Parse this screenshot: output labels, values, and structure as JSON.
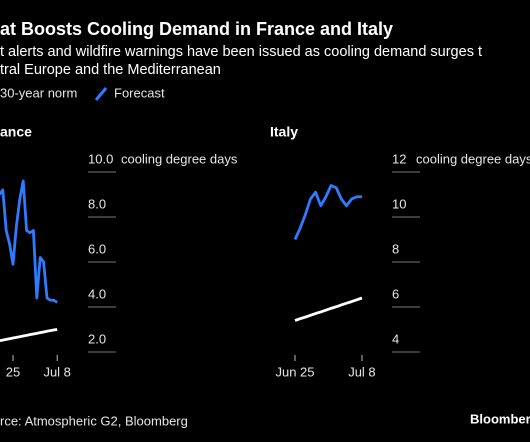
{
  "title": "at Boosts Cooling Demand in France and Italy",
  "subtitle": [
    "t alerts and wildfire warnings have been issued as cooling demand surges t",
    "tral Europe and the Mediterranean"
  ],
  "source": "rce: Atmospheric G2, Bloomberg",
  "brand": "Bloomberg",
  "chart_data": [
    {
      "type": "line",
      "title": "ance",
      "y_label": "cooling degree days",
      "categories": [
        null,
        null,
        null,
        null,
        "25",
        null,
        null,
        null,
        null,
        null,
        null,
        null,
        null,
        null,
        null,
        null,
        null,
        "Jul 8"
      ],
      "series": [
        {
          "name": "30-year norm",
          "color": "#ffffff",
          "values": [
            2.5,
            2.53,
            2.56,
            2.59,
            2.62,
            2.65,
            2.68,
            2.71,
            2.74,
            2.77,
            2.8,
            2.83,
            2.86,
            2.89,
            2.92,
            2.95,
            2.98,
            3.0
          ]
        },
        {
          "name": "Forecast",
          "color": "#2f7bff",
          "values": [
            9.0,
            9.2,
            7.4,
            6.8,
            5.9,
            7.6,
            8.8,
            9.6,
            7.4,
            7.3,
            7.4,
            4.4,
            6.2,
            6.0,
            4.4,
            4.3,
            4.3,
            4.2
          ]
        }
      ],
      "ylim": [
        2,
        10
      ],
      "yticks": [
        {
          "value": 10,
          "label": "10.0"
        },
        {
          "value": 8,
          "label": "8.0"
        },
        {
          "value": 6,
          "label": "6.0"
        },
        {
          "value": 4,
          "label": "4.0"
        },
        {
          "value": 2,
          "label": "2.0"
        }
      ]
    },
    {
      "type": "line",
      "title": "Italy",
      "y_label": "cooling degree days",
      "categories": [
        "Jun 25",
        null,
        null,
        null,
        null,
        null,
        null,
        null,
        null,
        null,
        null,
        null,
        null,
        "Jul 8"
      ],
      "series": [
        {
          "name": "30-year norm",
          "color": "#ffffff",
          "values": [
            5.4,
            5.48,
            5.55,
            5.63,
            5.71,
            5.78,
            5.86,
            5.94,
            6.01,
            6.09,
            6.17,
            6.24,
            6.32,
            6.4
          ]
        },
        {
          "name": "Forecast",
          "color": "#2f7bff",
          "values": [
            9.0,
            9.5,
            10.1,
            10.8,
            11.1,
            10.5,
            10.9,
            11.4,
            11.3,
            10.8,
            10.5,
            10.8,
            10.9,
            10.9
          ]
        }
      ],
      "ylim": [
        4,
        12
      ],
      "yticks": [
        12,
        10,
        8,
        6,
        4
      ]
    }
  ]
}
